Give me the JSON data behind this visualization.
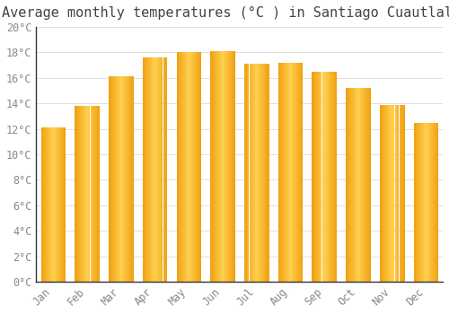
{
  "title": "Average monthly temperatures (°C ) in Santiago Cuautlalpan",
  "months": [
    "Jan",
    "Feb",
    "Mar",
    "Apr",
    "May",
    "Jun",
    "Jul",
    "Aug",
    "Sep",
    "Oct",
    "Nov",
    "Dec"
  ],
  "values": [
    12.1,
    13.8,
    16.1,
    17.6,
    18.0,
    18.1,
    17.1,
    17.2,
    16.5,
    15.2,
    13.9,
    12.5
  ],
  "bar_color_left": "#F0A010",
  "bar_color_center": "#FFD050",
  "bar_color_right": "#F0A010",
  "background_color": "#FFFFFF",
  "grid_color": "#E0E0E0",
  "ylim": [
    0,
    20
  ],
  "ytick_step": 2,
  "title_fontsize": 11,
  "tick_fontsize": 8.5,
  "tick_color": "#888888",
  "spine_color": "#333333",
  "bar_width": 0.72,
  "n_grad_steps": 50
}
